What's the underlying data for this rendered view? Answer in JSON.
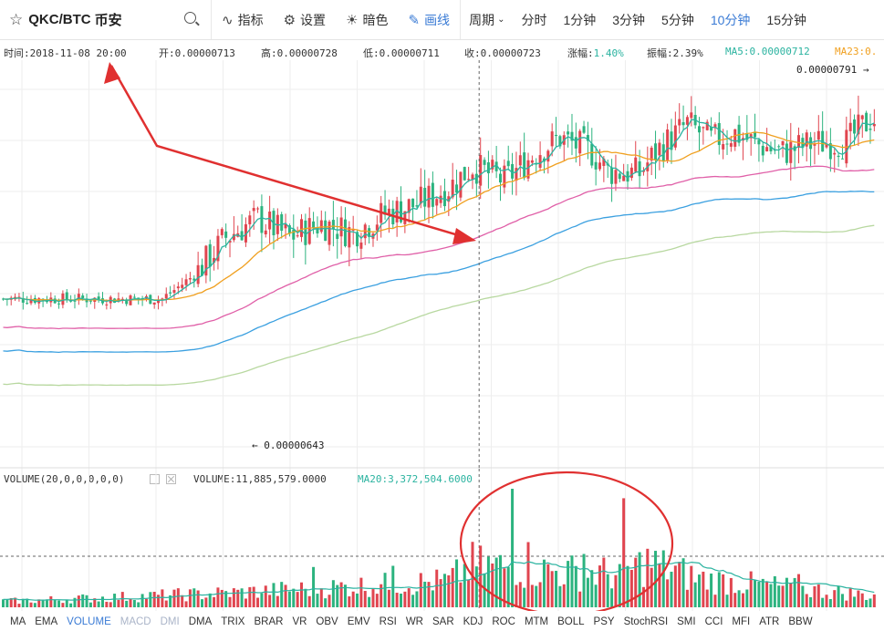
{
  "toolbar": {
    "symbol": "QKC/BTC",
    "exchange": "币安",
    "tools": [
      {
        "label": "指标",
        "icon": "indicator-icon",
        "glyph": "∿",
        "active": false
      },
      {
        "label": "设置",
        "icon": "gear-icon",
        "glyph": "⚙",
        "active": false
      },
      {
        "label": "暗色",
        "icon": "sun-icon",
        "glyph": "☀",
        "active": false
      },
      {
        "label": "画线",
        "icon": "pencil-icon",
        "glyph": "✎",
        "active": true
      }
    ],
    "period_label": "周期",
    "periods": [
      {
        "label": "分时",
        "active": false
      },
      {
        "label": "1分钟",
        "active": false
      },
      {
        "label": "3分钟",
        "active": false
      },
      {
        "label": "5分钟",
        "active": false
      },
      {
        "label": "10分钟",
        "active": true
      },
      {
        "label": "15分钟",
        "active": false
      }
    ]
  },
  "info": {
    "time": "时间:2018-11-08 20:00",
    "open": "开:0.00000713",
    "high": "高:0.00000728",
    "low": "低:0.00000711",
    "close": "收:0.00000723",
    "change_label": "涨幅:",
    "change_value": "1.40%",
    "amplitude": "振幅:2.39%",
    "ma5": "MA5:0.00000712",
    "ma23": "MA23:0."
  },
  "price_labels": {
    "max": "0.00000791 →",
    "min": "← 0.00000643"
  },
  "volume": {
    "params": "VOLUME(20,0,0,0,0,0)",
    "value": "VOLUME:11,885,579.0000",
    "ma20": "MA20:3,372,504.6000"
  },
  "indicators": [
    {
      "label": "MA",
      "state": "normal"
    },
    {
      "label": "EMA",
      "state": "normal"
    },
    {
      "label": "VOLUME",
      "state": "active"
    },
    {
      "label": "MACD",
      "state": "dim"
    },
    {
      "label": "DMI",
      "state": "dim"
    },
    {
      "label": "DMA",
      "state": "normal"
    },
    {
      "label": "TRIX",
      "state": "normal"
    },
    {
      "label": "BRAR",
      "state": "normal"
    },
    {
      "label": "VR",
      "state": "normal"
    },
    {
      "label": "OBV",
      "state": "normal"
    },
    {
      "label": "EMV",
      "state": "normal"
    },
    {
      "label": "RSI",
      "state": "normal"
    },
    {
      "label": "WR",
      "state": "normal"
    },
    {
      "label": "SAR",
      "state": "normal"
    },
    {
      "label": "KDJ",
      "state": "normal"
    },
    {
      "label": "ROC",
      "state": "normal"
    },
    {
      "label": "MTM",
      "state": "normal"
    },
    {
      "label": "BOLL",
      "state": "normal"
    },
    {
      "label": "PSY",
      "state": "normal"
    },
    {
      "label": "StochRSI",
      "state": "normal"
    },
    {
      "label": "SMI",
      "state": "normal"
    },
    {
      "label": "CCI",
      "state": "normal"
    },
    {
      "label": "MFI",
      "state": "normal"
    },
    {
      "label": "ATR",
      "state": "normal"
    },
    {
      "label": "BBW",
      "state": "normal"
    }
  ],
  "colors": {
    "up": "#e0454f",
    "down": "#2cb37f",
    "ma5": "#2bb3a0",
    "ma23": "#f0a020",
    "ma_pink": "#e060a8",
    "ma_blue": "#3ba0e0",
    "ma_green": "#b8d8a0",
    "annotation": "#e03030",
    "grid": "#eeeeee"
  },
  "chart_data": {
    "type": "candlestick",
    "price_max": 7.91e-06,
    "price_min": 6.43e-06,
    "price_pivots": [
      [
        0,
        7.04
      ],
      [
        40,
        7.04
      ],
      [
        48,
        7.14
      ],
      [
        56,
        7.3
      ],
      [
        64,
        7.38
      ],
      [
        72,
        7.3
      ],
      [
        80,
        7.36
      ],
      [
        88,
        7.32
      ],
      [
        96,
        7.4
      ],
      [
        104,
        7.44
      ],
      [
        112,
        7.51
      ],
      [
        118,
        7.6
      ],
      [
        126,
        7.54
      ],
      [
        134,
        7.66
      ],
      [
        140,
        7.72
      ],
      [
        148,
        7.66
      ],
      [
        152,
        7.58
      ],
      [
        160,
        7.57
      ],
      [
        164,
        7.66
      ],
      [
        172,
        7.78
      ],
      [
        178,
        7.71
      ],
      [
        184,
        7.74
      ],
      [
        190,
        7.69
      ],
      [
        196,
        7.66
      ],
      [
        204,
        7.7
      ],
      [
        212,
        7.7
      ],
      [
        218,
        7.8
      ]
    ],
    "volume_profile": [
      [
        0,
        0.05
      ],
      [
        56,
        0.12
      ],
      [
        112,
        0.22
      ],
      [
        118,
        0.36
      ],
      [
        140,
        0.3
      ],
      [
        155,
        0.28
      ],
      [
        162,
        0.38
      ],
      [
        175,
        0.24
      ],
      [
        218,
        0.1
      ]
    ],
    "volume_spikes": [
      [
        128,
        1.0
      ],
      [
        156,
        0.92
      ],
      [
        132,
        0.55
      ],
      [
        120,
        0.52
      ],
      [
        146,
        0.45
      ],
      [
        98,
        0.35
      ],
      [
        78,
        0.34
      ],
      [
        200,
        0.28
      ]
    ]
  }
}
